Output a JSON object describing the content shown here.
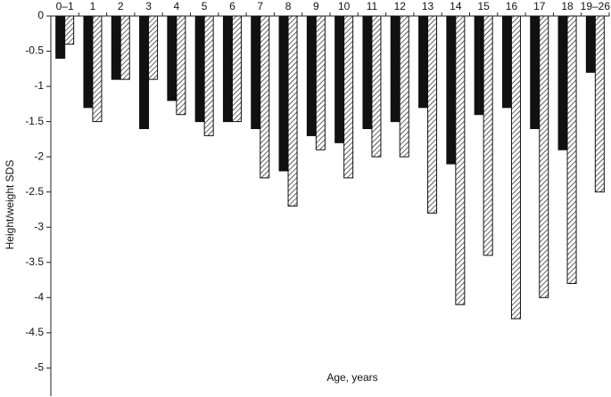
{
  "chart_data": {
    "type": "bar",
    "y_label": "Height/weight SDS",
    "x_label": "Age, years",
    "categories": [
      "0–1",
      "1",
      "2",
      "3",
      "4",
      "5",
      "6",
      "7",
      "8",
      "9",
      "10",
      "11",
      "12",
      "13",
      "14",
      "15",
      "16",
      "17",
      "18",
      "19–26"
    ],
    "series": [
      {
        "color": "#111111",
        "values": [
          -0.6,
          -1.3,
          -0.9,
          -1.6,
          -1.2,
          -1.5,
          -1.5,
          -1.6,
          -2.2,
          -1.7,
          -1.8,
          -1.6,
          -1.5,
          -1.3,
          -2.1,
          -1.4,
          -1.3,
          -1.6,
          -1.9,
          -0.8
        ]
      },
      {
        "color": "#ffffff",
        "hatch": true,
        "values": [
          -0.4,
          -1.5,
          -0.9,
          -0.9,
          -1.4,
          -1.7,
          -1.5,
          -2.3,
          -2.7,
          -1.9,
          -2.3,
          -2.0,
          -2.0,
          -2.8,
          -4.1,
          -3.4,
          -4.3,
          -4.0,
          -3.8,
          -2.5
        ]
      }
    ],
    "ylim": [
      -5.4,
      0
    ],
    "yticks": [
      0,
      -0.5,
      -1,
      -1.5,
      -2,
      -2.5,
      -3,
      -3.5,
      -4,
      -4.5,
      -5
    ],
    "grid": false
  }
}
